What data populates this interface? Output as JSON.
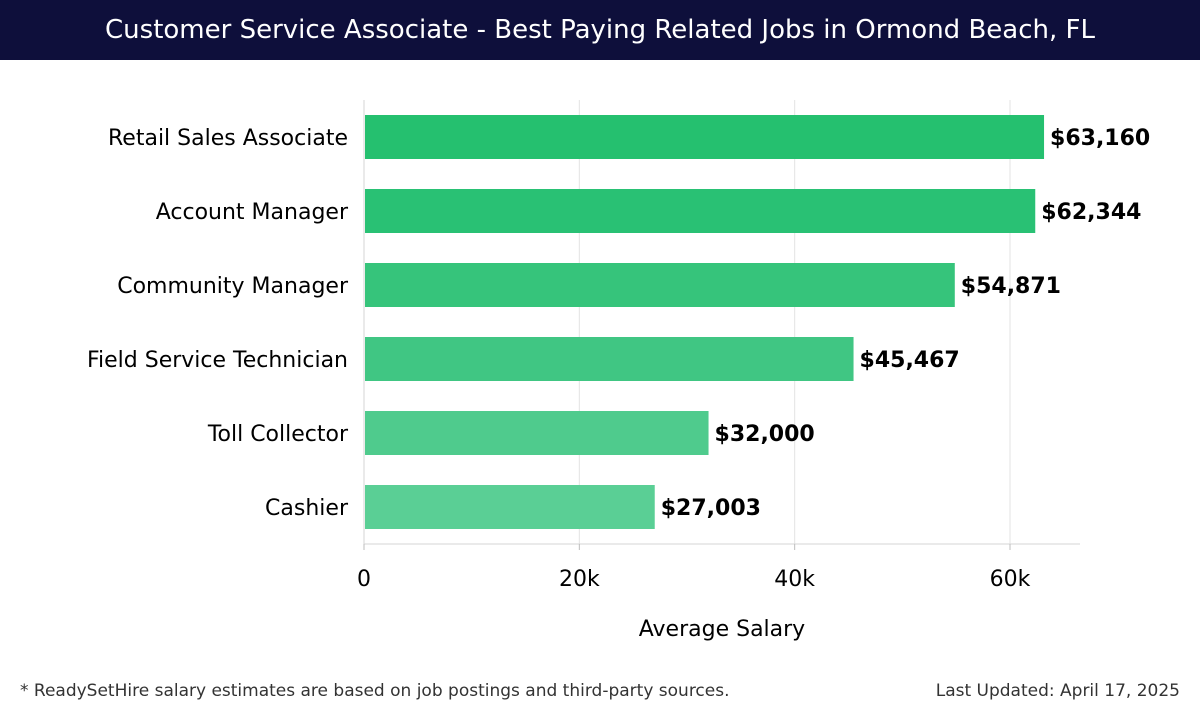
{
  "header": {
    "title": "Customer Service Associate - Best Paying Related Jobs in Ormond Beach, FL"
  },
  "chart_data": {
    "type": "bar",
    "orientation": "horizontal",
    "categories": [
      "Retail Sales Associate",
      "Account Manager",
      "Community Manager",
      "Field Service Technician",
      "Toll Collector",
      "Cashier"
    ],
    "values": [
      63160,
      62344,
      54871,
      45467,
      32000,
      27003
    ],
    "data_labels": [
      "$63,160",
      "$62,344",
      "$54,871",
      "$45,467",
      "$32,000",
      "$27,003"
    ],
    "bar_colors": [
      "#25c06f",
      "#29c174",
      "#36c47b",
      "#40c683",
      "#4fcb8d",
      "#5acf95"
    ],
    "xlabel": "Average Salary",
    "ylabel": "",
    "xlim": [
      0,
      66500
    ],
    "xticks": [
      0,
      20000,
      40000,
      60000
    ],
    "xtick_labels": [
      "0",
      "20k",
      "40k",
      "60k"
    ],
    "grid": "vertical"
  },
  "footer": {
    "note": "* ReadySetHire salary estimates are based on job postings and third-party sources.",
    "updated": "Last Updated: April 17, 2025"
  }
}
